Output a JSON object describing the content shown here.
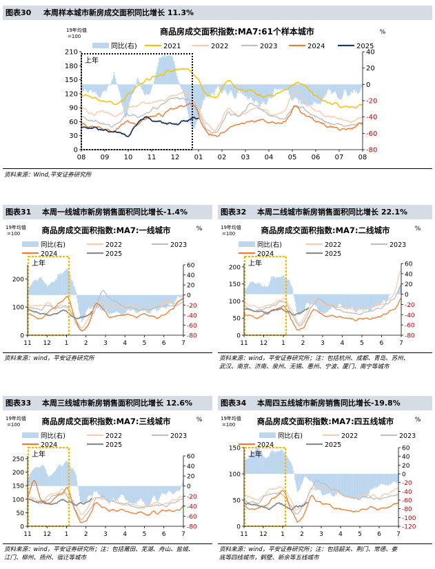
{
  "figures": [
    {
      "id": "fig30",
      "label": "图表30",
      "caption": "本周样本城市新房成交面积同比增长 11.3%",
      "source": "资料来源：Wind,平安证券研究所",
      "source_lines": [
        "资料来源：Wind,平安证券研究所"
      ]
    },
    {
      "id": "fig31",
      "label": "图表31",
      "caption": "本周一线城市新房销售面积同比增长-1.4%",
      "source_lines": [
        "资料来源：wind，平安证券研究所"
      ]
    },
    {
      "id": "fig32",
      "label": "图表32",
      "caption": "本周二线城市新房销售面积同比增长 22.1%",
      "source_lines": [
        "资料来源：wind，平安证券研究所；注：包括杭州、成都、青岛、苏州、",
        "武汉、南京、济南、泉州、无锡、惠州、宁波、厦门、南宁等城市"
      ]
    },
    {
      "id": "fig33",
      "label": "图表33",
      "caption": "本周三线城市新房销售面积同比增长 12.6%",
      "source_lines": [
        "资料来源：wind，平安证券研究所；注：包括莆田、芜湖、舟山、盐城、",
        "江门、柳州、扬州、宿迁等城市"
      ]
    },
    {
      "id": "fig34",
      "label": "图表34",
      "caption": "本周四五线城市新房销售同比增长-19.8%",
      "source_lines": [
        "资料来源：wind，平安证券研究所；注：包括韶关、荆门、常德、娄",
        "底等四线城市，鹤壁、新余等五线城市"
      ]
    }
  ],
  "chart_data": [
    {
      "type": "line",
      "title": "商品房成交面积指数:MA7:61个样本城市",
      "left_axis_note": [
        "19年均值",
        "=100"
      ],
      "right_axis_label": "%",
      "ylim": [
        0,
        210
      ],
      "yticks": [
        0,
        30,
        60,
        90,
        120,
        150,
        180,
        210
      ],
      "y2lim": [
        -80,
        40
      ],
      "y2ticks": [
        40,
        20,
        0,
        -20,
        -40,
        -60,
        -80
      ],
      "x_ticks": [
        "08",
        "09",
        "10",
        "11",
        "12",
        "01",
        "02",
        "03",
        "04",
        "05",
        "06",
        "07",
        "08"
      ],
      "box_label": "上年",
      "legend": [
        "同比(右)",
        "2021",
        "2022",
        "2023",
        "2024",
        "2025"
      ],
      "colors": {
        "yoy": "#9dc3e6",
        "2021": "#f5c000",
        "2022": "#f4b183",
        "2023": "#bfbfbf",
        "2024": "#ed7d31",
        "2025": "#1f3864"
      }
    },
    {
      "type": "line",
      "title": "商品房成交面积指数:MA7:一线城市",
      "left_axis_note": [
        "19年均值",
        "=100"
      ],
      "right_axis_label": "%",
      "ylim": [
        0,
        250
      ],
      "yticks": [
        0,
        100,
        200
      ],
      "y2lim": [
        -80,
        60
      ],
      "y2ticks": [
        60,
        40,
        20,
        0,
        -20,
        -40,
        -60,
        -80
      ],
      "x_ticks": [
        "11",
        "12",
        "1",
        "2",
        "3",
        "4",
        "5",
        "6",
        "7"
      ],
      "box_label": "上年",
      "legend": [
        "同比(右)",
        "2022",
        "2023",
        "2024",
        "2025"
      ]
    },
    {
      "type": "line",
      "title": "商品房成交面积指数:MA7:二线城市",
      "left_axis_note": [
        "19年均值",
        "=100"
      ],
      "right_axis_label": "%",
      "ylim": [
        0,
        210
      ],
      "yticks": [
        0,
        50,
        100,
        150,
        200
      ],
      "y2lim": [
        -80,
        60
      ],
      "y2ticks": [
        60,
        40,
        20,
        0,
        -20,
        -40,
        -60,
        -80
      ],
      "x_ticks": [
        "11",
        "12",
        "1",
        "2",
        "3",
        "4",
        "5",
        "6",
        "7"
      ],
      "box_label": "上年",
      "legend": [
        "同比(右)",
        "2022",
        "2023",
        "2024",
        "2025"
      ]
    },
    {
      "type": "line",
      "title": "商品房成交面积指数:MA7:三线城市",
      "left_axis_note": [
        "19年均值",
        "=100"
      ],
      "right_axis_label": "%",
      "ylim": [
        0,
        260
      ],
      "yticks": [
        0,
        50,
        100,
        150,
        200,
        250
      ],
      "y2lim": [
        -80,
        60
      ],
      "y2ticks": [
        60,
        40,
        20,
        0,
        -20,
        -40,
        -60,
        -80
      ],
      "x_ticks": [
        "11",
        "12",
        "1",
        "2",
        "3",
        "4",
        "5",
        "6",
        "7"
      ],
      "box_label": "上年",
      "legend": [
        "同比(右)",
        "2022",
        "2023",
        "2024",
        "2025"
      ]
    },
    {
      "type": "line",
      "title": "商品房成交面积指数:MA7:四五线城市",
      "left_axis_note": [
        "19年均值",
        "=100"
      ],
      "right_axis_label": "%",
      "ylim": [
        0,
        150
      ],
      "yticks": [
        0,
        50,
        100,
        150
      ],
      "y2lim": [
        -120,
        60
      ],
      "y2ticks": [
        60,
        40,
        20,
        0,
        -20,
        -40,
        -60,
        -80,
        -100,
        -120
      ],
      "x_ticks": [
        "11",
        "12",
        "1",
        "2",
        "3",
        "4",
        "5",
        "6",
        "7"
      ],
      "box_label": "上年",
      "legend": [
        "同比(右)",
        "2022",
        "2023",
        "2024",
        "2025"
      ]
    }
  ]
}
